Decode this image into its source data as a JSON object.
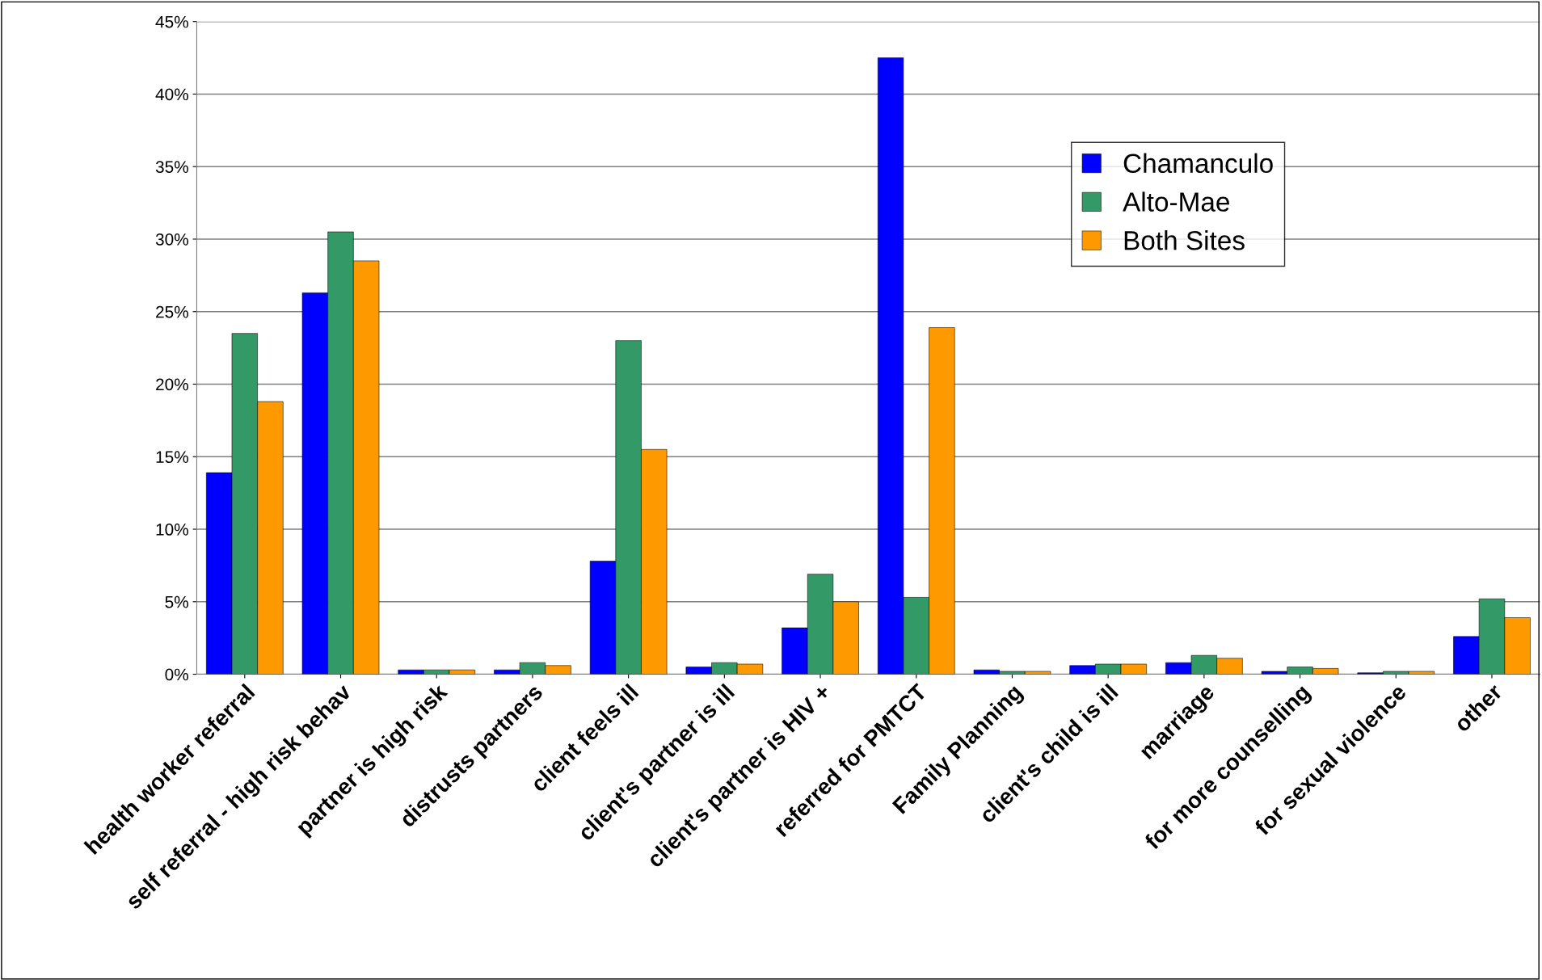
{
  "chart_data": {
    "type": "bar",
    "categories": [
      "health worker referral",
      "self referral - high risk behav",
      "partner is high risk",
      "distrusts partners",
      "client feels ill",
      "client's partner is ill",
      "client's partner is HIV +",
      "referred for PMTCT",
      "Family Planning",
      "client's child is ill",
      "marriage",
      "for more counselling",
      "for sexual violence",
      "other"
    ],
    "series": [
      {
        "name": "Chamanculo",
        "color": "#0000ff",
        "values": [
          13.9,
          26.3,
          0.3,
          0.3,
          7.8,
          0.5,
          3.2,
          42.5,
          0.3,
          0.6,
          0.8,
          0.2,
          0.1,
          2.6
        ]
      },
      {
        "name": "Alto-Mae",
        "color": "#339966",
        "values": [
          23.5,
          30.5,
          0.3,
          0.8,
          23.0,
          0.8,
          6.9,
          5.3,
          0.2,
          0.7,
          1.3,
          0.5,
          0.2,
          5.2
        ]
      },
      {
        "name": "Both Sites",
        "color": "#ff9900",
        "values": [
          18.8,
          28.5,
          0.3,
          0.6,
          15.5,
          0.7,
          5.0,
          23.9,
          0.2,
          0.7,
          1.1,
          0.4,
          0.2,
          3.9
        ]
      }
    ],
    "ylim": [
      0,
      45
    ],
    "yticks": [
      {
        "value": 0,
        "label": "0%"
      },
      {
        "value": 5,
        "label": "5%"
      },
      {
        "value": 10,
        "label": "10%"
      },
      {
        "value": 15,
        "label": "15%"
      },
      {
        "value": 20,
        "label": "20%"
      },
      {
        "value": 25,
        "label": "25%"
      },
      {
        "value": 30,
        "label": "30%"
      },
      {
        "value": 35,
        "label": "35%"
      },
      {
        "value": 40,
        "label": "40%"
      },
      {
        "value": 45,
        "label": "45%"
      }
    ],
    "grid": "y",
    "legend": "right"
  }
}
